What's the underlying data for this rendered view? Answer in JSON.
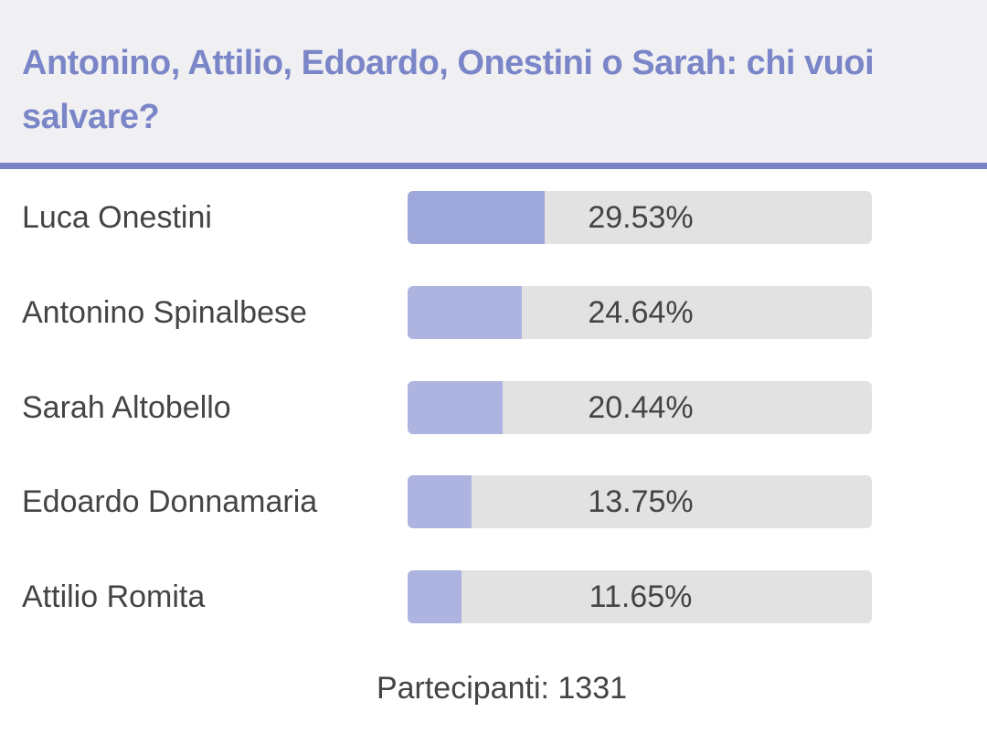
{
  "poll": {
    "title": "Antonino, Attilio, Edoardo, Onestini o Sarah: chi vuoi salvare?",
    "options": [
      {
        "label": "Luca Onestini",
        "value": 29.53,
        "value_label": "29.53%",
        "color": "#9fa8da"
      },
      {
        "label": "Antonino Spinalbese",
        "value": 24.64,
        "value_label": "24.64%",
        "color": "#aeb4e0"
      },
      {
        "label": "Sarah Altobello",
        "value": 20.44,
        "value_label": "20.44%",
        "color": "#aeb4e0"
      },
      {
        "label": "Edoardo Donnamaria",
        "value": 13.75,
        "value_label": "13.75%",
        "color": "#aeb4e0"
      },
      {
        "label": "Attilio Romita",
        "value": 11.65,
        "value_label": "11.65%",
        "color": "#aeb4e0"
      }
    ],
    "footer": "Partecipanti: 1331"
  }
}
